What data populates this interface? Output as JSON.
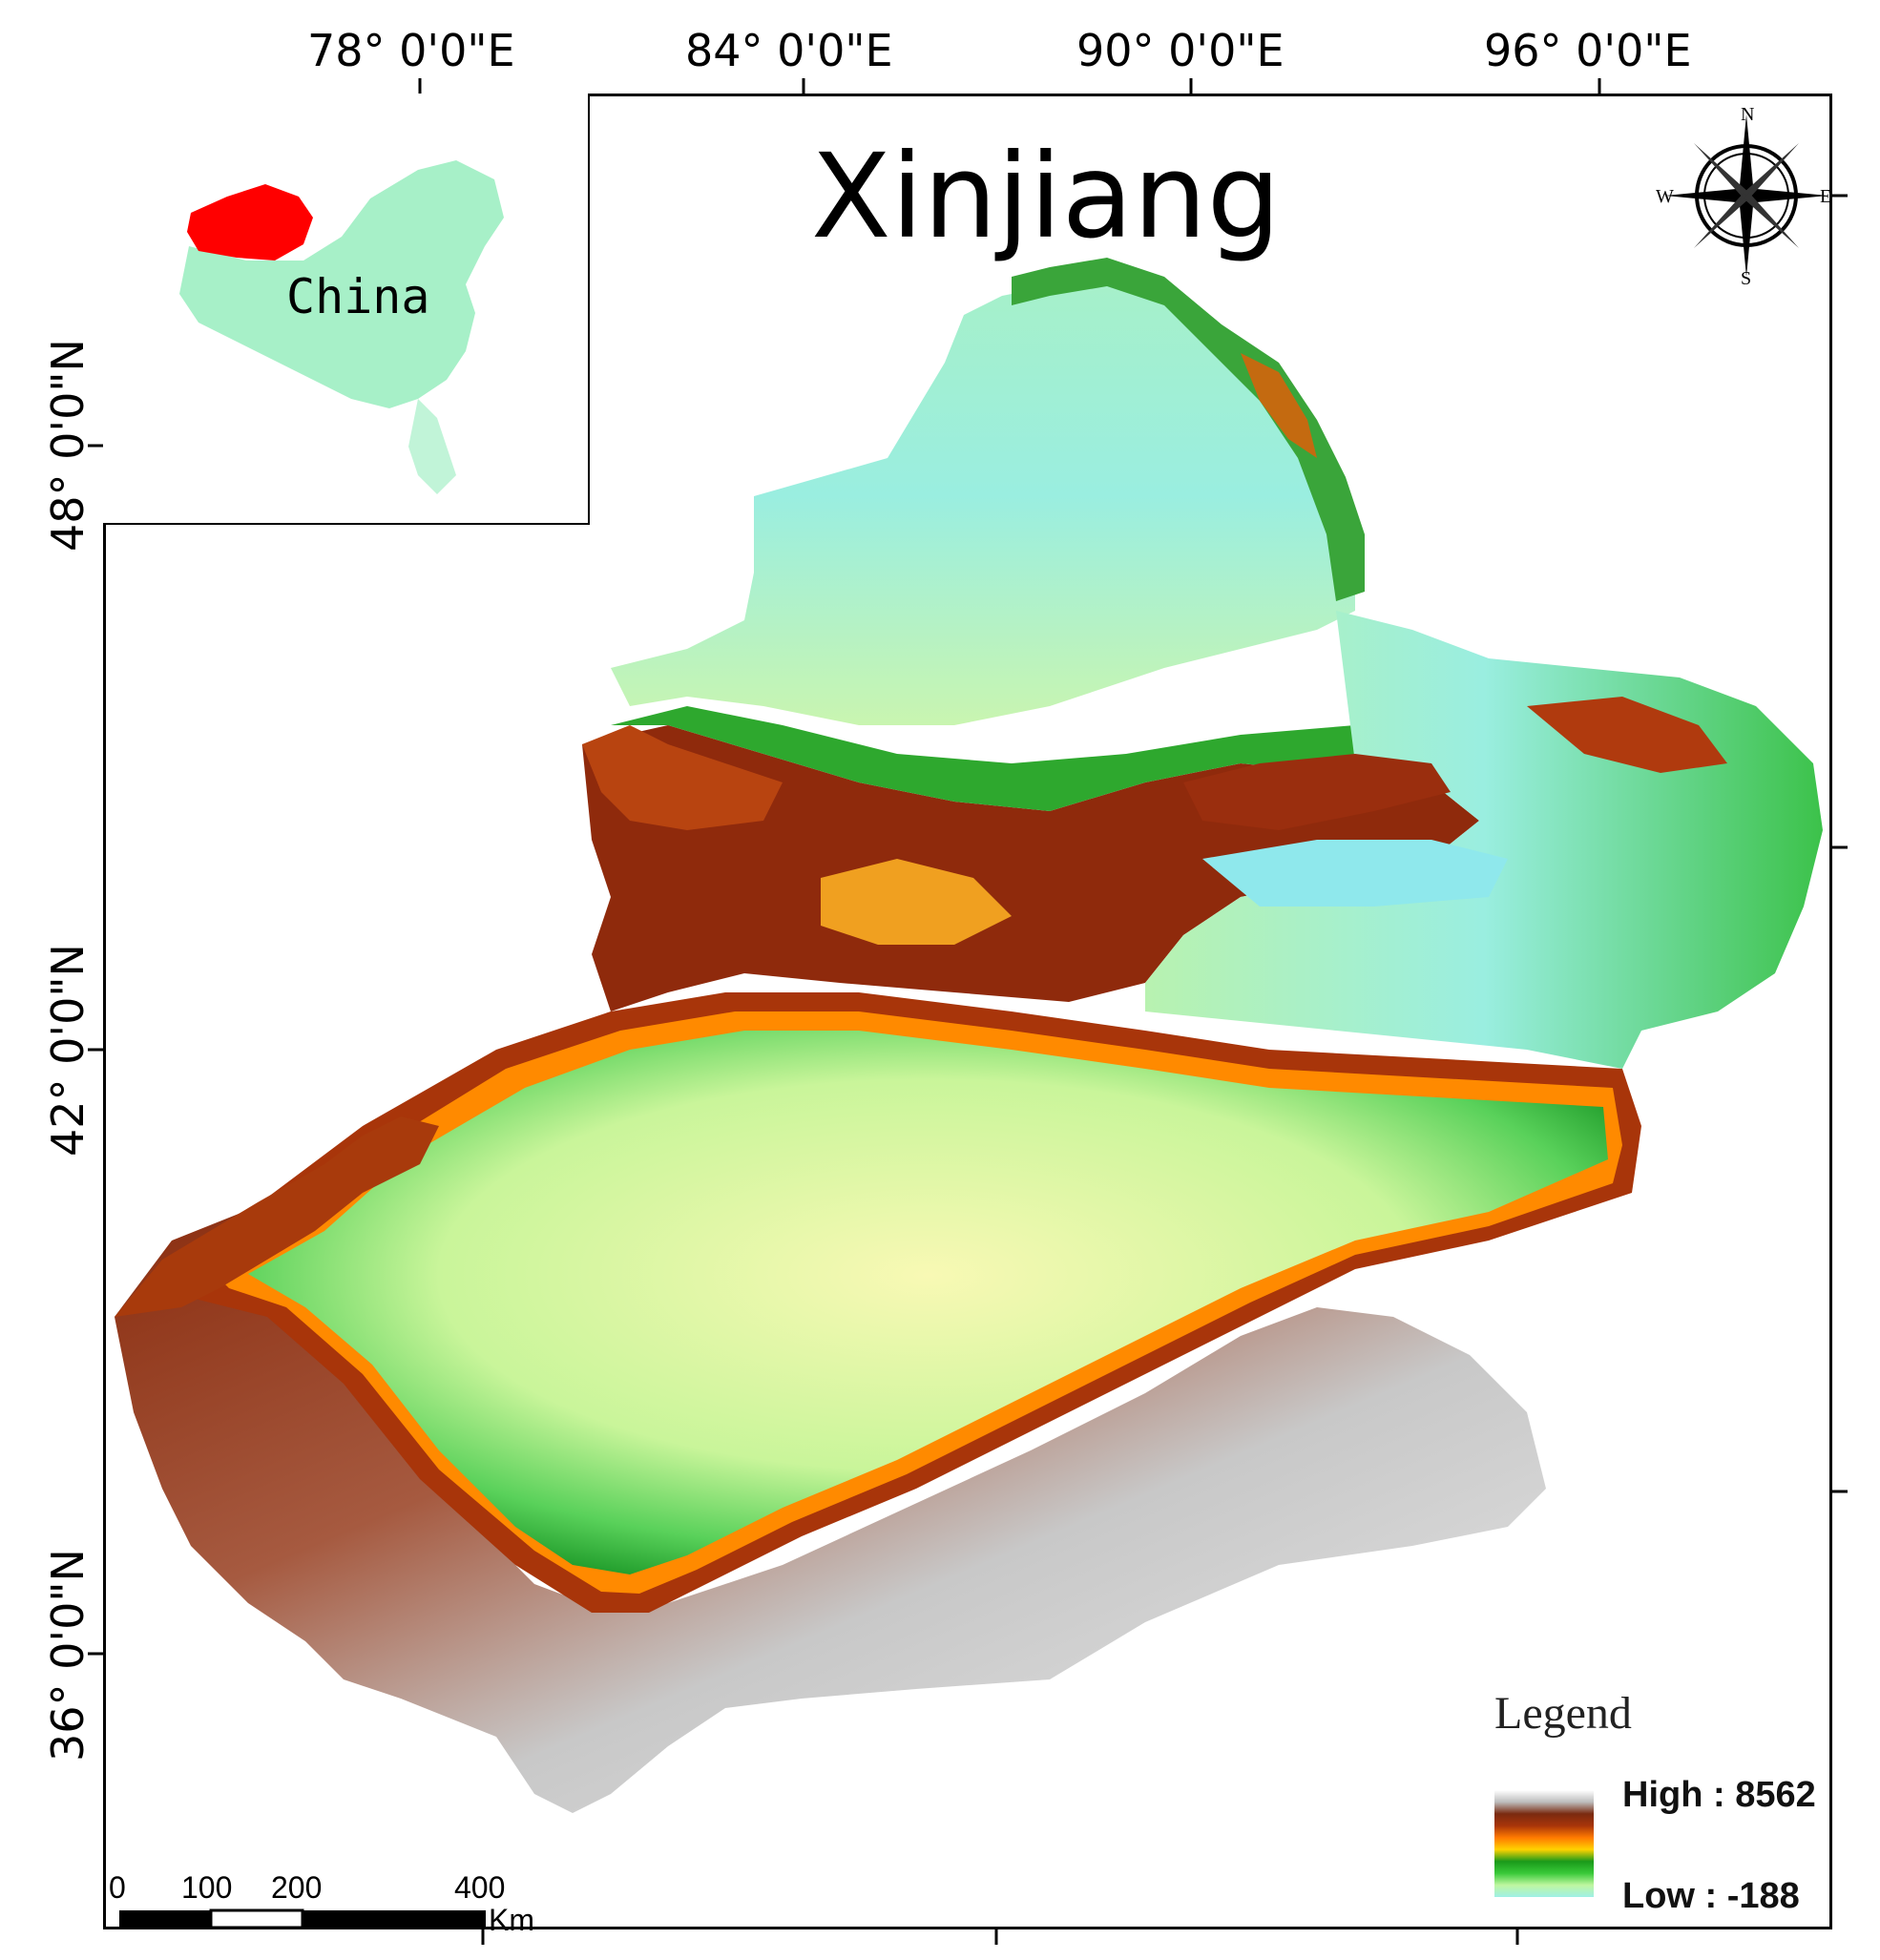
{
  "map": {
    "title": "Xinjiang",
    "inset": {
      "label": "China",
      "highlight_color": "#ff0000",
      "country_color": "#a7f0c8"
    },
    "graticule": {
      "longitudes": [
        {
          "id": "lon-78",
          "label": "78° 0'0\"E"
        },
        {
          "id": "lon-84",
          "label": "84° 0'0\"E"
        },
        {
          "id": "lon-90",
          "label": "90° 0'0\"E"
        },
        {
          "id": "lon-96",
          "label": "96° 0'0\"E"
        }
      ],
      "latitudes": [
        {
          "id": "lat-48",
          "label": "48° 0'0\"N"
        },
        {
          "id": "lat-42",
          "label": "42° 0'0\"N"
        },
        {
          "id": "lat-36",
          "label": "36° 0'0\"N"
        }
      ]
    },
    "north_arrow": {
      "n": "N",
      "s": "S",
      "e": "E",
      "w": "W"
    },
    "legend": {
      "title": "Legend",
      "high_label": "High : 8562",
      "low_label": "Low : -188",
      "ramp": [
        "#ffffff",
        "#bdbdbd",
        "#7a2a10",
        "#a8350a",
        "#ff7a00",
        "#ffd200",
        "#1a9a1a",
        "#39c939",
        "#bff7a0",
        "#9ff0e6"
      ]
    },
    "scale_bar": {
      "ticks": [
        "0",
        "100",
        "200",
        "400"
      ],
      "unit": "Km"
    }
  }
}
